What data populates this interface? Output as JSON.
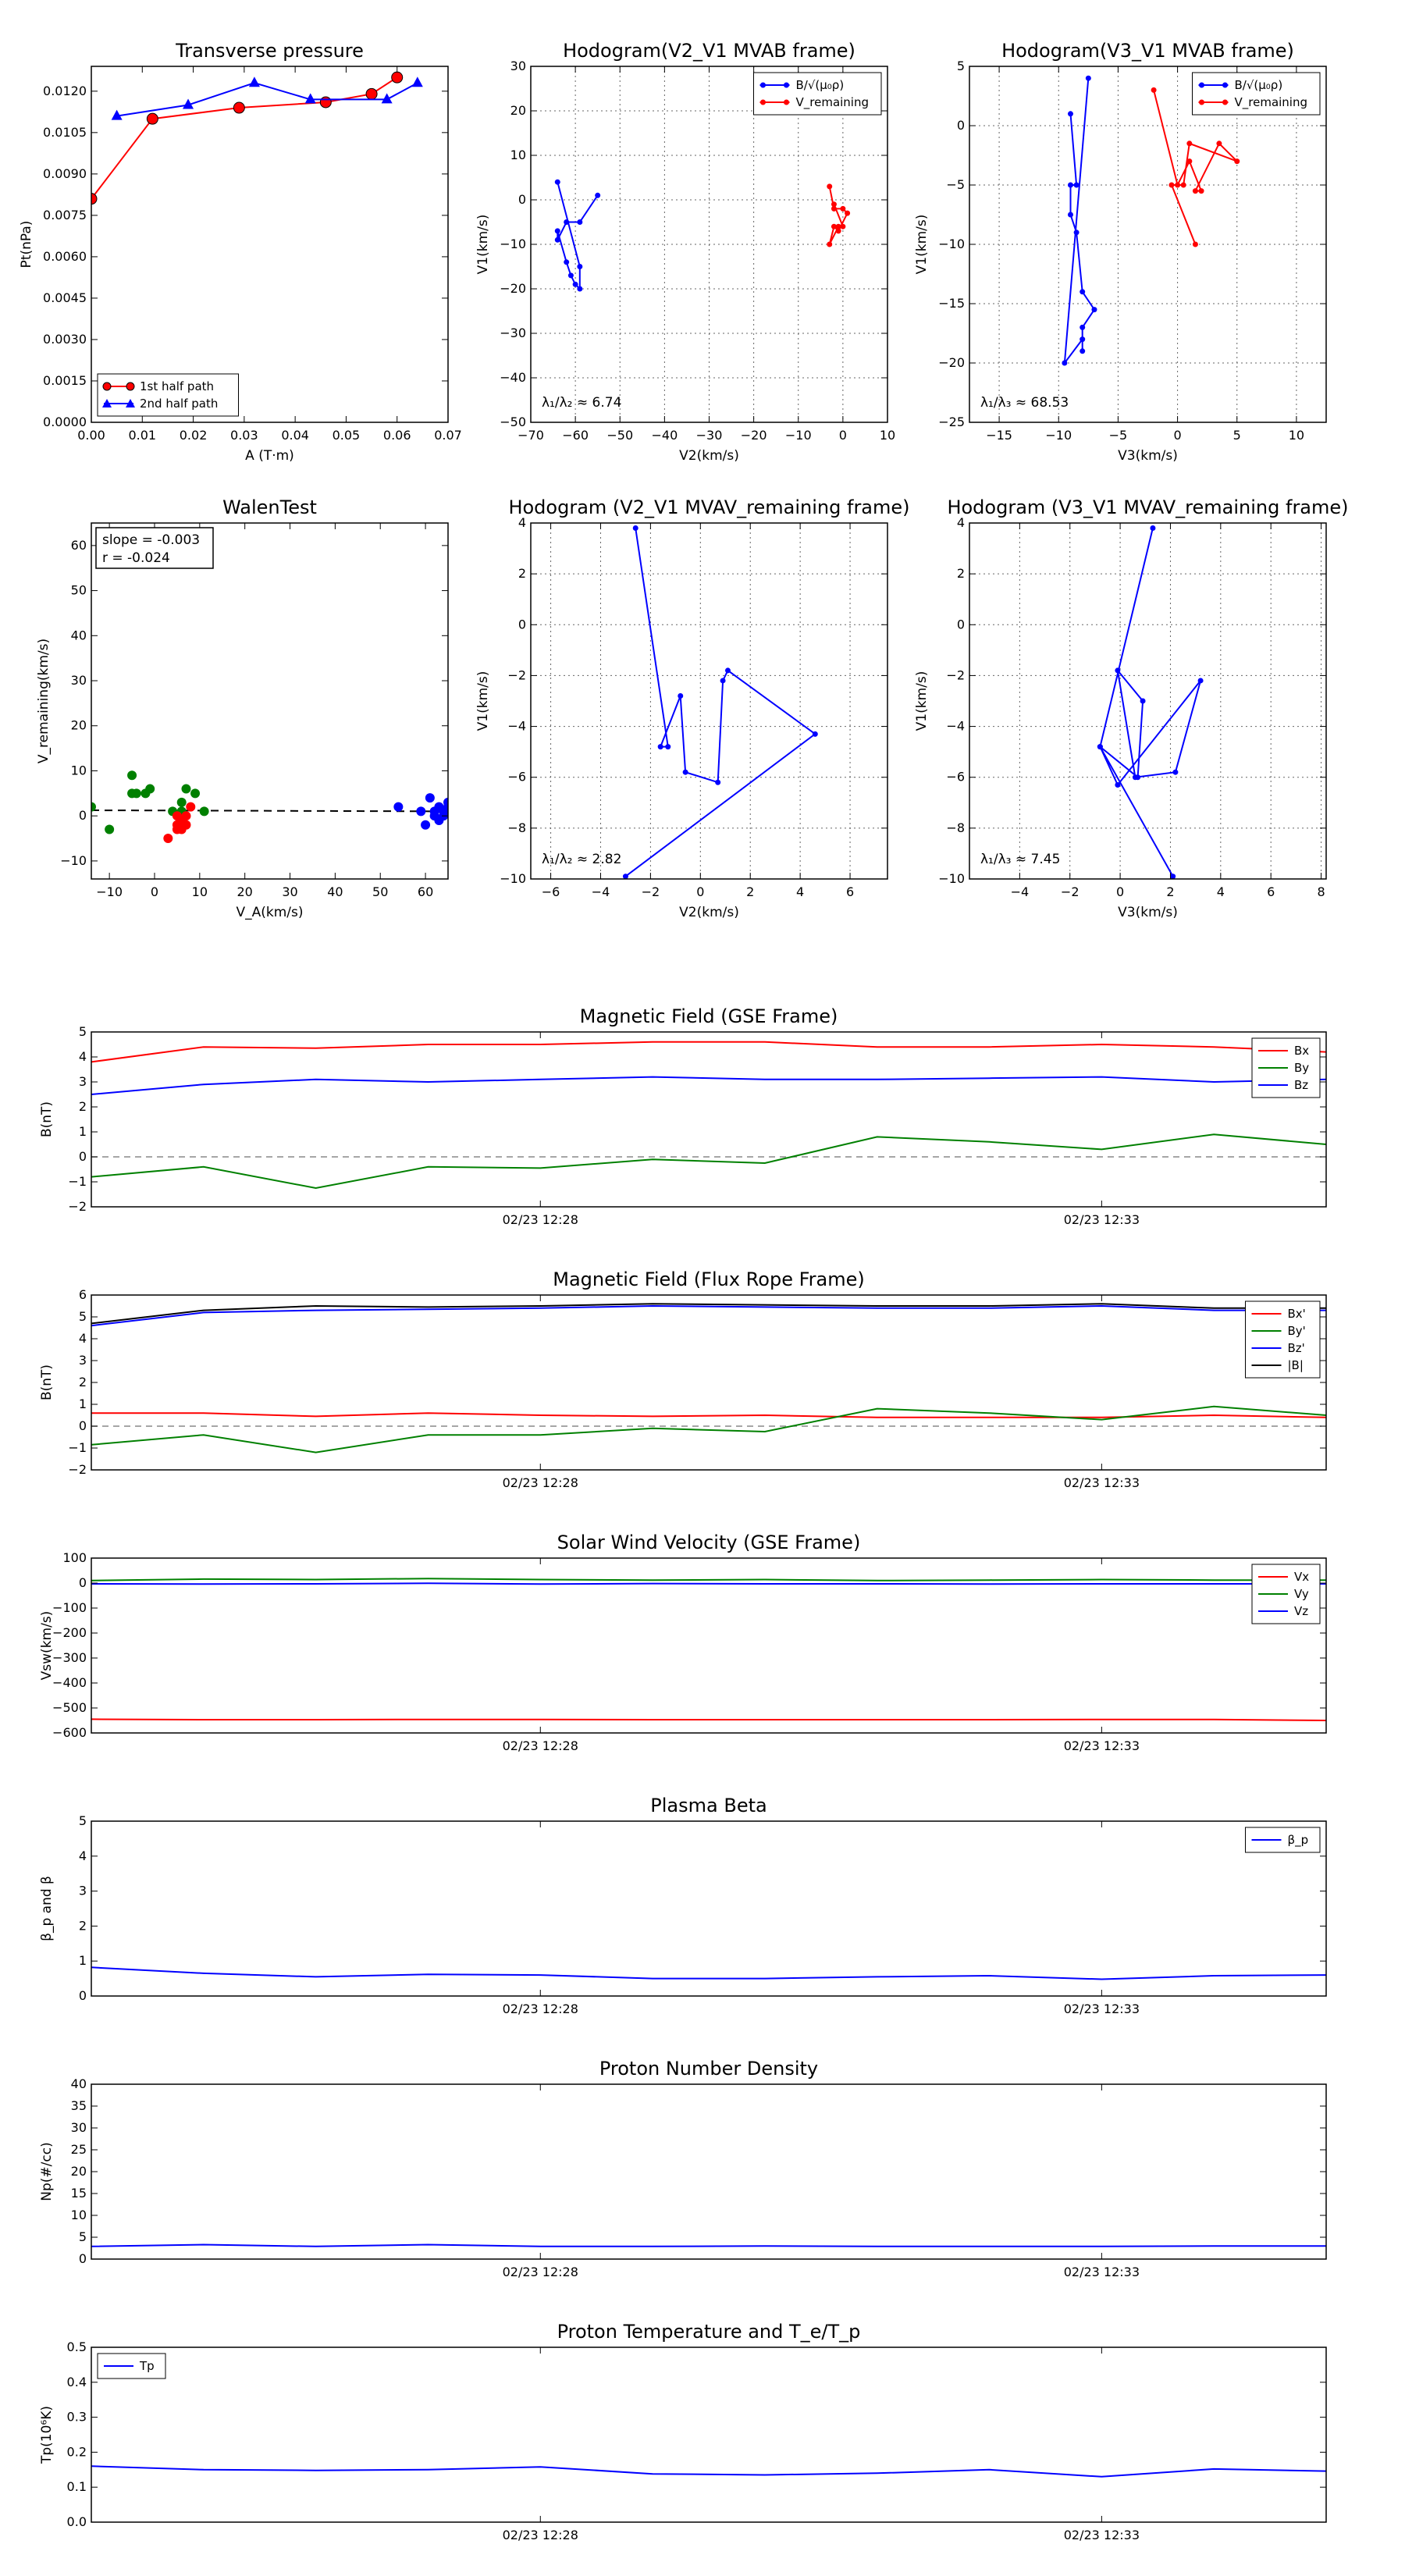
{
  "chart_data": [
    {
      "id": "tp",
      "type": "line",
      "title": "Transverse pressure",
      "xlabel": "A (T·m)",
      "ylabel": "Pt(nPa)",
      "xlim": [
        0,
        0.07
      ],
      "ylim": [
        0,
        0.0129
      ],
      "xticks": [
        "0.00",
        "0.01",
        "0.02",
        "0.03",
        "0.04",
        "0.05",
        "0.06",
        "0.07"
      ],
      "yticks": [
        "0.0000",
        "0.0015",
        "0.0030",
        "0.0045",
        "0.0060",
        "0.0075",
        "0.0090",
        "0.0105",
        "0.0120"
      ],
      "grid": false,
      "legend_position": "lower-left",
      "series": [
        {
          "name": "1st half path",
          "color": "#ff0000",
          "marker": "circle",
          "x": [
            0.0,
            0.012,
            0.029,
            0.046,
            0.055,
            0.06
          ],
          "y": [
            0.0081,
            0.011,
            0.0114,
            0.0116,
            0.0119,
            0.0125
          ]
        },
        {
          "name": "2nd half path",
          "color": "#0000ff",
          "marker": "triangle",
          "x": [
            0.005,
            0.019,
            0.032,
            0.043,
            0.058,
            0.064
          ],
          "y": [
            0.0111,
            0.0115,
            0.0123,
            0.0117,
            0.0117,
            0.0123
          ]
        }
      ]
    },
    {
      "id": "h1",
      "type": "line",
      "title": "Hodogram(V2_V1 MVAB frame)",
      "xlabel": "V2(km/s)",
      "ylabel": "V1(km/s)",
      "xlim": [
        -70,
        10
      ],
      "ylim": [
        -50,
        30
      ],
      "xticks": [
        "−70",
        "−60",
        "−50",
        "−40",
        "−30",
        "−20",
        "−10",
        "0",
        "10"
      ],
      "yticks": [
        "−50",
        "−40",
        "−30",
        "−20",
        "−10",
        "0",
        "10",
        "20",
        "30"
      ],
      "grid": true,
      "legend_position": "upper-right",
      "annotation": "λ₁/λ₂ ≈ 6.74",
      "series": [
        {
          "name": "B/√(μ₀ρ)",
          "color": "#0000ff",
          "marker": "dot",
          "x": [
            -55,
            -59,
            -62,
            -64,
            -64,
            -62,
            -61,
            -60,
            -59,
            -59,
            -64
          ],
          "y": [
            1,
            -5,
            -5,
            -9,
            -7,
            -14,
            -17,
            -19,
            -20,
            -15,
            4
          ]
        },
        {
          "name": "V_remaining",
          "color": "#ff0000",
          "marker": "dot",
          "x": [
            -3,
            -2,
            0,
            1,
            -1,
            -2,
            -3,
            -1,
            0,
            -2
          ],
          "y": [
            3,
            -2,
            -2,
            -3,
            -7,
            -6,
            -10,
            -6,
            -6,
            -1
          ]
        }
      ]
    },
    {
      "id": "h2",
      "type": "line",
      "title": "Hodogram(V3_V1 MVAB frame)",
      "xlabel": "V3(km/s)",
      "ylabel": "V1(km/s)",
      "xlim": [
        -17.5,
        12.5
      ],
      "ylim": [
        -25,
        5
      ],
      "xticks": [
        "−15",
        "−10",
        "−5",
        "0",
        "5",
        "10"
      ],
      "yticks": [
        "−25",
        "−20",
        "−15",
        "−10",
        "−5",
        "0",
        "5"
      ],
      "grid": true,
      "legend_position": "upper-right",
      "annotation": "λ₁/λ₃ ≈ 68.53",
      "series": [
        {
          "name": "B/√(μ₀ρ)",
          "color": "#0000ff",
          "marker": "dot",
          "x": [
            -9,
            -8.5,
            -9,
            -9,
            -8.5,
            -8,
            -7,
            -8,
            -8,
            -8,
            -9.5,
            -7.5
          ],
          "y": [
            1,
            -5,
            -5,
            -7.5,
            -9,
            -14,
            -15.5,
            -17,
            -19,
            -18,
            -20,
            4
          ]
        },
        {
          "name": "V_remaining",
          "color": "#ff0000",
          "marker": "dot",
          "x": [
            -2,
            0,
            1,
            2,
            1.5,
            3.5,
            5,
            1,
            0.5,
            -0.5,
            1.5
          ],
          "y": [
            3,
            -5,
            -3,
            -5.5,
            -5.5,
            -1.5,
            -3,
            -1.5,
            -5,
            -5,
            -10
          ]
        }
      ]
    },
    {
      "id": "wt",
      "type": "scatter",
      "title": "WalenTest",
      "xlabel": "V_A(km/s)",
      "ylabel": "V_remaining(km/s)",
      "xlim": [
        -14,
        65
      ],
      "ylim": [
        -14,
        65
      ],
      "xticks": [
        "−10",
        "0",
        "10",
        "20",
        "30",
        "40",
        "50",
        "60"
      ],
      "yticks": [
        "−10",
        "0",
        "10",
        "20",
        "30",
        "40",
        "50",
        "60"
      ],
      "grid": false,
      "annotation_lines": [
        "slope = -0.003",
        "r = -0.024"
      ],
      "fit": {
        "slope": -0.003,
        "intercept": 1.2
      },
      "series": [
        {
          "name": "green",
          "color": "#008000",
          "x": [
            -14,
            -10,
            -5,
            -5,
            -4,
            -2,
            -1,
            4,
            6,
            6,
            7,
            9,
            11
          ],
          "y": [
            2,
            -3,
            5,
            9,
            5,
            5,
            6,
            1,
            3,
            1,
            6,
            5,
            1
          ]
        },
        {
          "name": "red",
          "color": "#ff0000",
          "x": [
            3,
            5,
            5,
            5,
            6,
            6,
            7,
            7,
            8
          ],
          "y": [
            -5,
            -2,
            -3,
            0,
            -1,
            -3,
            0,
            -2,
            2
          ]
        },
        {
          "name": "blue",
          "color": "#0000ff",
          "x": [
            54,
            59,
            60,
            61,
            62,
            62,
            63,
            63,
            64,
            64,
            65,
            65
          ],
          "y": [
            2,
            1,
            -2,
            4,
            0,
            1,
            2,
            -1,
            1,
            0,
            2,
            3
          ]
        }
      ]
    },
    {
      "id": "h3",
      "type": "line",
      "title": "Hodogram (V2_V1 MVAV_remaining frame)",
      "xlabel": "V2(km/s)",
      "ylabel": "V1(km/s)",
      "xlim": [
        -6.8,
        7.5
      ],
      "ylim": [
        -10,
        4
      ],
      "xticks": [
        "−6",
        "−4",
        "−2",
        "0",
        "2",
        "4",
        "6"
      ],
      "yticks": [
        "−10",
        "−8",
        "−6",
        "−4",
        "−2",
        "0",
        "2",
        "4"
      ],
      "grid": true,
      "annotation": "λ₁/λ₂ ≈ 2.82",
      "series": [
        {
          "name": "blue",
          "color": "#0000ff",
          "marker": "dot",
          "x": [
            -2.6,
            -1.3,
            -1.6,
            -0.8,
            -0.6,
            0.7,
            0.9,
            1.1,
            4.6,
            -3.0
          ],
          "y": [
            3.8,
            -4.8,
            -4.8,
            -2.8,
            -5.8,
            -6.2,
            -2.2,
            -1.8,
            -4.3,
            -9.9
          ]
        }
      ]
    },
    {
      "id": "h4",
      "type": "line",
      "title": "Hodogram (V3_V1 MVAV_remaining frame)",
      "xlabel": "V3(km/s)",
      "ylabel": "V1(km/s)",
      "xlim": [
        -6,
        8.2
      ],
      "ylim": [
        -10,
        4
      ],
      "xticks": [
        "−4",
        "−2",
        "0",
        "2",
        "4",
        "6",
        "8"
      ],
      "yticks": [
        "−10",
        "−8",
        "−6",
        "−4",
        "−2",
        "0",
        "2",
        "4"
      ],
      "grid": true,
      "annotation": "λ₁/λ₃ ≈ 7.45",
      "series": [
        {
          "name": "blue",
          "color": "#0000ff",
          "marker": "dot",
          "x": [
            1.3,
            -0.8,
            0.7,
            0.9,
            -0.1,
            0.6,
            2.2,
            3.2,
            -0.1,
            -0.8,
            2.1
          ],
          "y": [
            3.8,
            -4.8,
            -6.0,
            -3.0,
            -1.8,
            -6.0,
            -5.8,
            -2.2,
            -6.3,
            -4.8,
            -9.9
          ]
        }
      ]
    },
    {
      "id": "mf",
      "type": "line",
      "title": "Magnetic Field (GSE Frame)",
      "xlabel": "",
      "ylabel": "B(nT)",
      "xlim": [
        0,
        11
      ],
      "ylim": [
        -2,
        5
      ],
      "yticks": [
        "−2",
        "−1",
        "0",
        "1",
        "2",
        "3",
        "4",
        "5"
      ],
      "xtick_labels": [
        "02/23 12:28",
        "02/23 12:33"
      ],
      "xtick_positions": [
        4,
        9
      ],
      "zero_line": true,
      "legend_position": "upper-right",
      "series": [
        {
          "name": "Bx",
          "color": "#ff0000",
          "values": [
            3.8,
            4.4,
            4.35,
            4.5,
            4.5,
            4.6,
            4.6,
            4.4,
            4.4,
            4.5,
            4.4,
            4.2
          ]
        },
        {
          "name": "By",
          "color": "#008000",
          "values": [
            -0.8,
            -0.4,
            -1.25,
            -0.4,
            -0.45,
            -0.1,
            -0.25,
            0.8,
            0.6,
            0.3,
            0.9,
            0.5
          ]
        },
        {
          "name": "Bz",
          "color": "#0000ff",
          "values": [
            2.5,
            2.9,
            3.1,
            3.0,
            3.1,
            3.2,
            3.1,
            3.1,
            3.15,
            3.2,
            3.0,
            3.1
          ]
        }
      ]
    },
    {
      "id": "mfr",
      "type": "line",
      "title": "Magnetic Field (Flux Rope Frame)",
      "xlabel": "",
      "ylabel": "B(nT)",
      "xlim": [
        0,
        11
      ],
      "ylim": [
        -2,
        6
      ],
      "yticks": [
        "−2",
        "−1",
        "0",
        "1",
        "2",
        "3",
        "4",
        "5",
        "6"
      ],
      "xtick_labels": [
        "02/23 12:28",
        "02/23 12:33"
      ],
      "xtick_positions": [
        4,
        9
      ],
      "zero_line": true,
      "legend_position": "upper-right",
      "series": [
        {
          "name": "Bx'",
          "color": "#ff0000",
          "values": [
            0.6,
            0.6,
            0.45,
            0.6,
            0.5,
            0.45,
            0.5,
            0.4,
            0.4,
            0.4,
            0.5,
            0.4
          ]
        },
        {
          "name": "By'",
          "color": "#008000",
          "values": [
            -0.85,
            -0.4,
            -1.2,
            -0.4,
            -0.4,
            -0.1,
            -0.25,
            0.8,
            0.6,
            0.3,
            0.9,
            0.5
          ]
        },
        {
          "name": "Bz'",
          "color": "#0000ff",
          "values": [
            4.6,
            5.2,
            5.3,
            5.35,
            5.4,
            5.5,
            5.45,
            5.4,
            5.4,
            5.5,
            5.3,
            5.3
          ]
        },
        {
          "name": "|B|",
          "color": "#000000",
          "values": [
            4.7,
            5.3,
            5.5,
            5.45,
            5.5,
            5.6,
            5.55,
            5.5,
            5.5,
            5.6,
            5.4,
            5.4
          ]
        }
      ]
    },
    {
      "id": "sw",
      "type": "line",
      "title": "Solar Wind Velocity (GSE Frame)",
      "xlabel": "",
      "ylabel": "Vsw(km/s)",
      "xlim": [
        0,
        11
      ],
      "ylim": [
        -600,
        100
      ],
      "yticks": [
        "−600",
        "−500",
        "−400",
        "−300",
        "−200",
        "−100",
        "0",
        "100"
      ],
      "xtick_labels": [
        "02/23 12:28",
        "02/23 12:33"
      ],
      "xtick_positions": [
        4,
        9
      ],
      "legend_position": "upper-right",
      "series": [
        {
          "name": "Vx",
          "color": "#ff0000",
          "values": [
            -545,
            -547,
            -547,
            -546,
            -546,
            -547,
            -547,
            -547,
            -547,
            -546,
            -546,
            -550
          ]
        },
        {
          "name": "Vy",
          "color": "#008000",
          "values": [
            10,
            16,
            14,
            18,
            14,
            12,
            14,
            10,
            12,
            14,
            12,
            12
          ]
        },
        {
          "name": "Vz",
          "color": "#0000ff",
          "values": [
            -3,
            -4,
            -3,
            -1,
            -4,
            -2,
            -3,
            -3,
            -4,
            -3,
            -3,
            -3
          ]
        }
      ]
    },
    {
      "id": "pb",
      "type": "line",
      "title": "Plasma Beta",
      "xlabel": "",
      "ylabel": "β_p and β",
      "xlim": [
        0,
        11
      ],
      "ylim": [
        0,
        5
      ],
      "yticks": [
        "0",
        "1",
        "2",
        "3",
        "4",
        "5"
      ],
      "xtick_labels": [
        "02/23 12:28",
        "02/23 12:33"
      ],
      "xtick_positions": [
        4,
        9
      ],
      "legend_position": "upper-right",
      "series": [
        {
          "name": "β_p",
          "color": "#0000ff",
          "values": [
            0.82,
            0.65,
            0.55,
            0.62,
            0.6,
            0.5,
            0.5,
            0.55,
            0.58,
            0.48,
            0.58,
            0.6
          ]
        }
      ]
    },
    {
      "id": "pn",
      "type": "line",
      "title": "Proton Number Density",
      "xlabel": "",
      "ylabel": "Np(#/cc)",
      "xlim": [
        0,
        11
      ],
      "ylim": [
        0,
        40
      ],
      "yticks": [
        "0",
        "5",
        "10",
        "15",
        "20",
        "25",
        "30",
        "35",
        "40"
      ],
      "xtick_labels": [
        "02/23 12:28",
        "02/23 12:33"
      ],
      "xtick_positions": [
        4,
        9
      ],
      "series": [
        {
          "name": "",
          "color": "#0000ff",
          "values": [
            2.9,
            3.3,
            2.9,
            3.3,
            2.9,
            2.9,
            3.0,
            2.9,
            2.9,
            2.9,
            3.0,
            3.0
          ]
        }
      ]
    },
    {
      "id": "pt",
      "type": "line",
      "title": "Proton Temperature and T_e/T_p",
      "xlabel": "",
      "ylabel": "Tp(10⁶K)",
      "xlim": [
        0,
        11
      ],
      "ylim": [
        0,
        0.5
      ],
      "yticks": [
        "0.0",
        "0.1",
        "0.2",
        "0.3",
        "0.4",
        "0.5"
      ],
      "xtick_labels": [
        "02/23 12:28",
        "02/23 12:33"
      ],
      "xtick_positions": [
        4,
        9
      ],
      "legend_position": "upper-left",
      "series": [
        {
          "name": "Tp",
          "color": "#0000ff",
          "values": [
            0.16,
            0.15,
            0.148,
            0.15,
            0.158,
            0.138,
            0.135,
            0.14,
            0.15,
            0.13,
            0.152,
            0.146
          ]
        }
      ]
    }
  ]
}
